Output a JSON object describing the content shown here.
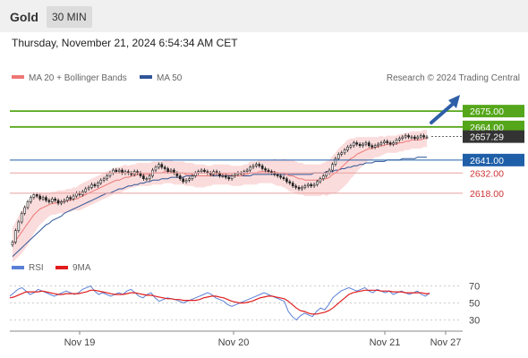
{
  "header": {
    "title": "Gold",
    "timeframe": "30 MIN"
  },
  "datetime": "Thursday, November 21, 2024 6:54:34 AM CET",
  "colors": {
    "ma20": "#ee7777",
    "ma50": "#2f5597",
    "bands": "#f9d0d0",
    "resistance": "#55a61a",
    "support": "#e8a0a0",
    "pivot": "#1f5fa8",
    "current": "#333333",
    "rsi": "#5a7fd6",
    "rsi_ma": "#e01c1c",
    "arrow": "#2f5fa8",
    "bull": "#ffffff",
    "bear": "#222222"
  },
  "legend": {
    "ma20": "MA 20 + Bollinger Bands",
    "ma50": "MA 50",
    "credit": "Research © 2024 Trading Central"
  },
  "rsi_legend": {
    "rsi": "RSI",
    "ma": "9MA"
  },
  "chart_data": [
    {
      "type": "line",
      "subtype": "candlestick",
      "ylim": [
        2575,
        2690
      ],
      "x_ticks": [
        "Nov 19",
        "Nov 20",
        "Nov 21",
        "Nov 27"
      ],
      "levels": [
        {
          "label": "2675.00",
          "value": 2675.0,
          "kind": "resistance"
        },
        {
          "label": "2664.00",
          "value": 2664.0,
          "kind": "resistance"
        },
        {
          "label": "2657.29",
          "value": 2657.29,
          "kind": "current"
        },
        {
          "label": "2641.00",
          "value": 2641.0,
          "kind": "pivot"
        },
        {
          "label": "2632.00",
          "value": 2632.0,
          "kind": "support"
        },
        {
          "label": "2618.00",
          "value": 2618.0,
          "kind": "support"
        }
      ],
      "close": [
        2584,
        2592,
        2598,
        2604,
        2608,
        2612,
        2615,
        2617,
        2616,
        2614,
        2615,
        2613,
        2612,
        2614,
        2613,
        2611,
        2612,
        2613,
        2615,
        2614,
        2616,
        2618,
        2617,
        2619,
        2621,
        2622,
        2624,
        2623,
        2625,
        2627,
        2628,
        2630,
        2632,
        2634,
        2633,
        2634,
        2632,
        2633,
        2632,
        2631,
        2633,
        2632,
        2630,
        2628,
        2628,
        2630,
        2634,
        2636,
        2638,
        2636,
        2635,
        2633,
        2634,
        2632,
        2630,
        2628,
        2626,
        2627,
        2628,
        2630,
        2632,
        2633,
        2634,
        2633,
        2632,
        2631,
        2633,
        2632,
        2630,
        2630,
        2629,
        2628,
        2630,
        2631,
        2632,
        2632,
        2633,
        2634,
        2636,
        2637,
        2638,
        2637,
        2635,
        2634,
        2633,
        2632,
        2631,
        2630,
        2629,
        2628,
        2626,
        2625,
        2623,
        2622,
        2621,
        2622,
        2623,
        2624,
        2623,
        2624,
        2626,
        2628,
        2630,
        2632,
        2634,
        2638,
        2642,
        2645,
        2646,
        2648,
        2650,
        2651,
        2653,
        2652,
        2651,
        2652,
        2653,
        2651,
        2650,
        2651,
        2652,
        2653,
        2654,
        2653,
        2652,
        2653,
        2655,
        2656,
        2657,
        2658,
        2657,
        2657,
        2656,
        2657,
        2658,
        2657,
        2657
      ],
      "ma20": [
        2582,
        2585,
        2588,
        2591,
        2594,
        2597,
        2600,
        2603,
        2605,
        2607,
        2608,
        2609,
        2610,
        2611,
        2611,
        2612,
        2612,
        2612,
        2613,
        2613,
        2614,
        2614,
        2615,
        2616,
        2617,
        2618,
        2619,
        2620,
        2621,
        2622,
        2623,
        2624,
        2625,
        2626,
        2627,
        2627,
        2628,
        2629,
        2629,
        2630,
        2630,
        2631,
        2631,
        2631,
        2631,
        2631,
        2632,
        2632,
        2632,
        2632,
        2633,
        2633,
        2633,
        2632,
        2632,
        2632,
        2632,
        2631,
        2631,
        2631,
        2630,
        2630,
        2630,
        2630,
        2630,
        2630,
        2631,
        2631,
        2631,
        2631,
        2631,
        2631,
        2630,
        2630,
        2630,
        2630,
        2631,
        2631,
        2632,
        2632,
        2632,
        2633,
        2633,
        2633,
        2633,
        2633,
        2633,
        2632,
        2632,
        2632,
        2631,
        2630,
        2630,
        2629,
        2628,
        2628,
        2627,
        2627,
        2627,
        2627,
        2627,
        2627,
        2628,
        2628,
        2629,
        2631,
        2632,
        2634,
        2636,
        2638,
        2640,
        2642,
        2643,
        2645,
        2646,
        2647,
        2648,
        2649,
        2649,
        2650,
        2650,
        2651,
        2651,
        2652,
        2652,
        2652,
        2652,
        2653,
        2653,
        2654,
        2654,
        2655,
        2655,
        2655,
        2655,
        2656,
        2656
      ],
      "ma50": [
        2574,
        2576,
        2578,
        2580,
        2582,
        2584,
        2586,
        2588,
        2590,
        2592,
        2594,
        2596,
        2597,
        2599,
        2600,
        2601,
        2602,
        2604,
        2605,
        2606,
        2607,
        2608,
        2609,
        2610,
        2611,
        2612,
        2613,
        2614,
        2615,
        2616,
        2617,
        2618,
        2618,
        2619,
        2620,
        2621,
        2621,
        2622,
        2623,
        2623,
        2624,
        2624,
        2625,
        2625,
        2626,
        2626,
        2627,
        2627,
        2627,
        2628,
        2628,
        2628,
        2629,
        2629,
        2629,
        2629,
        2629,
        2630,
        2630,
        2630,
        2630,
        2630,
        2630,
        2630,
        2630,
        2630,
        2630,
        2630,
        2630,
        2630,
        2630,
        2630,
        2630,
        2630,
        2630,
        2630,
        2630,
        2630,
        2630,
        2631,
        2631,
        2631,
        2631,
        2631,
        2631,
        2631,
        2631,
        2631,
        2631,
        2631,
        2631,
        2631,
        2631,
        2631,
        2631,
        2631,
        2631,
        2631,
        2631,
        2632,
        2632,
        2632,
        2632,
        2633,
        2633,
        2633,
        2634,
        2634,
        2635,
        2635,
        2636,
        2636,
        2637,
        2637,
        2638,
        2638,
        2639,
        2639,
        2639,
        2640,
        2640,
        2640,
        2640,
        2641,
        2641,
        2641,
        2641,
        2641,
        2642,
        2642,
        2642,
        2642,
        2642,
        2643,
        2643,
        2643,
        2643
      ],
      "bb_width": [
        12,
        13,
        14,
        15,
        15,
        15,
        14,
        13,
        12,
        11,
        10,
        9,
        8,
        8,
        8,
        8,
        8,
        8,
        8,
        8,
        8,
        8,
        9,
        9,
        9,
        9,
        9,
        9,
        9,
        9,
        9,
        9,
        9,
        9,
        9,
        9,
        9,
        9,
        8,
        8,
        8,
        8,
        8,
        8,
        8,
        8,
        8,
        8,
        8,
        8,
        8,
        8,
        8,
        8,
        8,
        8,
        8,
        8,
        8,
        8,
        8,
        8,
        8,
        8,
        7,
        7,
        7,
        7,
        7,
        7,
        7,
        7,
        7,
        7,
        7,
        7,
        7,
        7,
        8,
        8,
        8,
        8,
        8,
        8,
        8,
        8,
        9,
        9,
        9,
        10,
        10,
        11,
        11,
        11,
        11,
        11,
        11,
        11,
        11,
        11,
        11,
        11,
        11,
        12,
        12,
        13,
        14,
        15,
        15,
        15,
        15,
        14,
        13,
        12,
        11,
        10,
        9,
        8,
        8,
        7,
        7,
        7,
        6,
        6,
        6,
        6,
        6,
        6,
        6,
        6,
        6,
        6,
        6,
        6,
        6,
        6,
        6
      ]
    },
    {
      "type": "line",
      "subtype": "rsi",
      "ylim": [
        20,
        80
      ],
      "y_ticks": [
        70,
        50,
        30
      ],
      "rsi": [
        58,
        62,
        66,
        68,
        64,
        60,
        62,
        66,
        64,
        62,
        60,
        58,
        60,
        62,
        64,
        62,
        60,
        62,
        66,
        68,
        70,
        64,
        60,
        62,
        60,
        58,
        60,
        62,
        60,
        64,
        66,
        62,
        58,
        56,
        60,
        62,
        56,
        52,
        54,
        56,
        55,
        54,
        52,
        50,
        52,
        54,
        56,
        58,
        60,
        62,
        60,
        56,
        54,
        52,
        48,
        46,
        48,
        50,
        52,
        54,
        56,
        58,
        60,
        62,
        60,
        58,
        56,
        54,
        52,
        40,
        34,
        30,
        35,
        38,
        36,
        34,
        40,
        44,
        42,
        48,
        56,
        60,
        64,
        66,
        68,
        66,
        64,
        66,
        68,
        64,
        62,
        66,
        64,
        62,
        64,
        60,
        62,
        64,
        62,
        60,
        62,
        64,
        60,
        58,
        62
      ],
      "ma": [
        56,
        57,
        59,
        61,
        63,
        63,
        63,
        63,
        64,
        63,
        62,
        61,
        60,
        60,
        61,
        61,
        61,
        61,
        62,
        63,
        65,
        65,
        64,
        63,
        62,
        61,
        60,
        60,
        60,
        61,
        62,
        62,
        61,
        60,
        59,
        59,
        58,
        57,
        56,
        55,
        55,
        54,
        54,
        53,
        53,
        53,
        53,
        54,
        56,
        57,
        58,
        58,
        57,
        56,
        54,
        52,
        51,
        50,
        50,
        51,
        52,
        54,
        56,
        57,
        58,
        58,
        57,
        56,
        55,
        52,
        48,
        44,
        41,
        40,
        38,
        37,
        37,
        38,
        39,
        41,
        44,
        48,
        52,
        56,
        60,
        62,
        63,
        64,
        65,
        65,
        65,
        65,
        64,
        64,
        64,
        63,
        63,
        63,
        62,
        62,
        62,
        62,
        62,
        61,
        61
      ]
    }
  ]
}
